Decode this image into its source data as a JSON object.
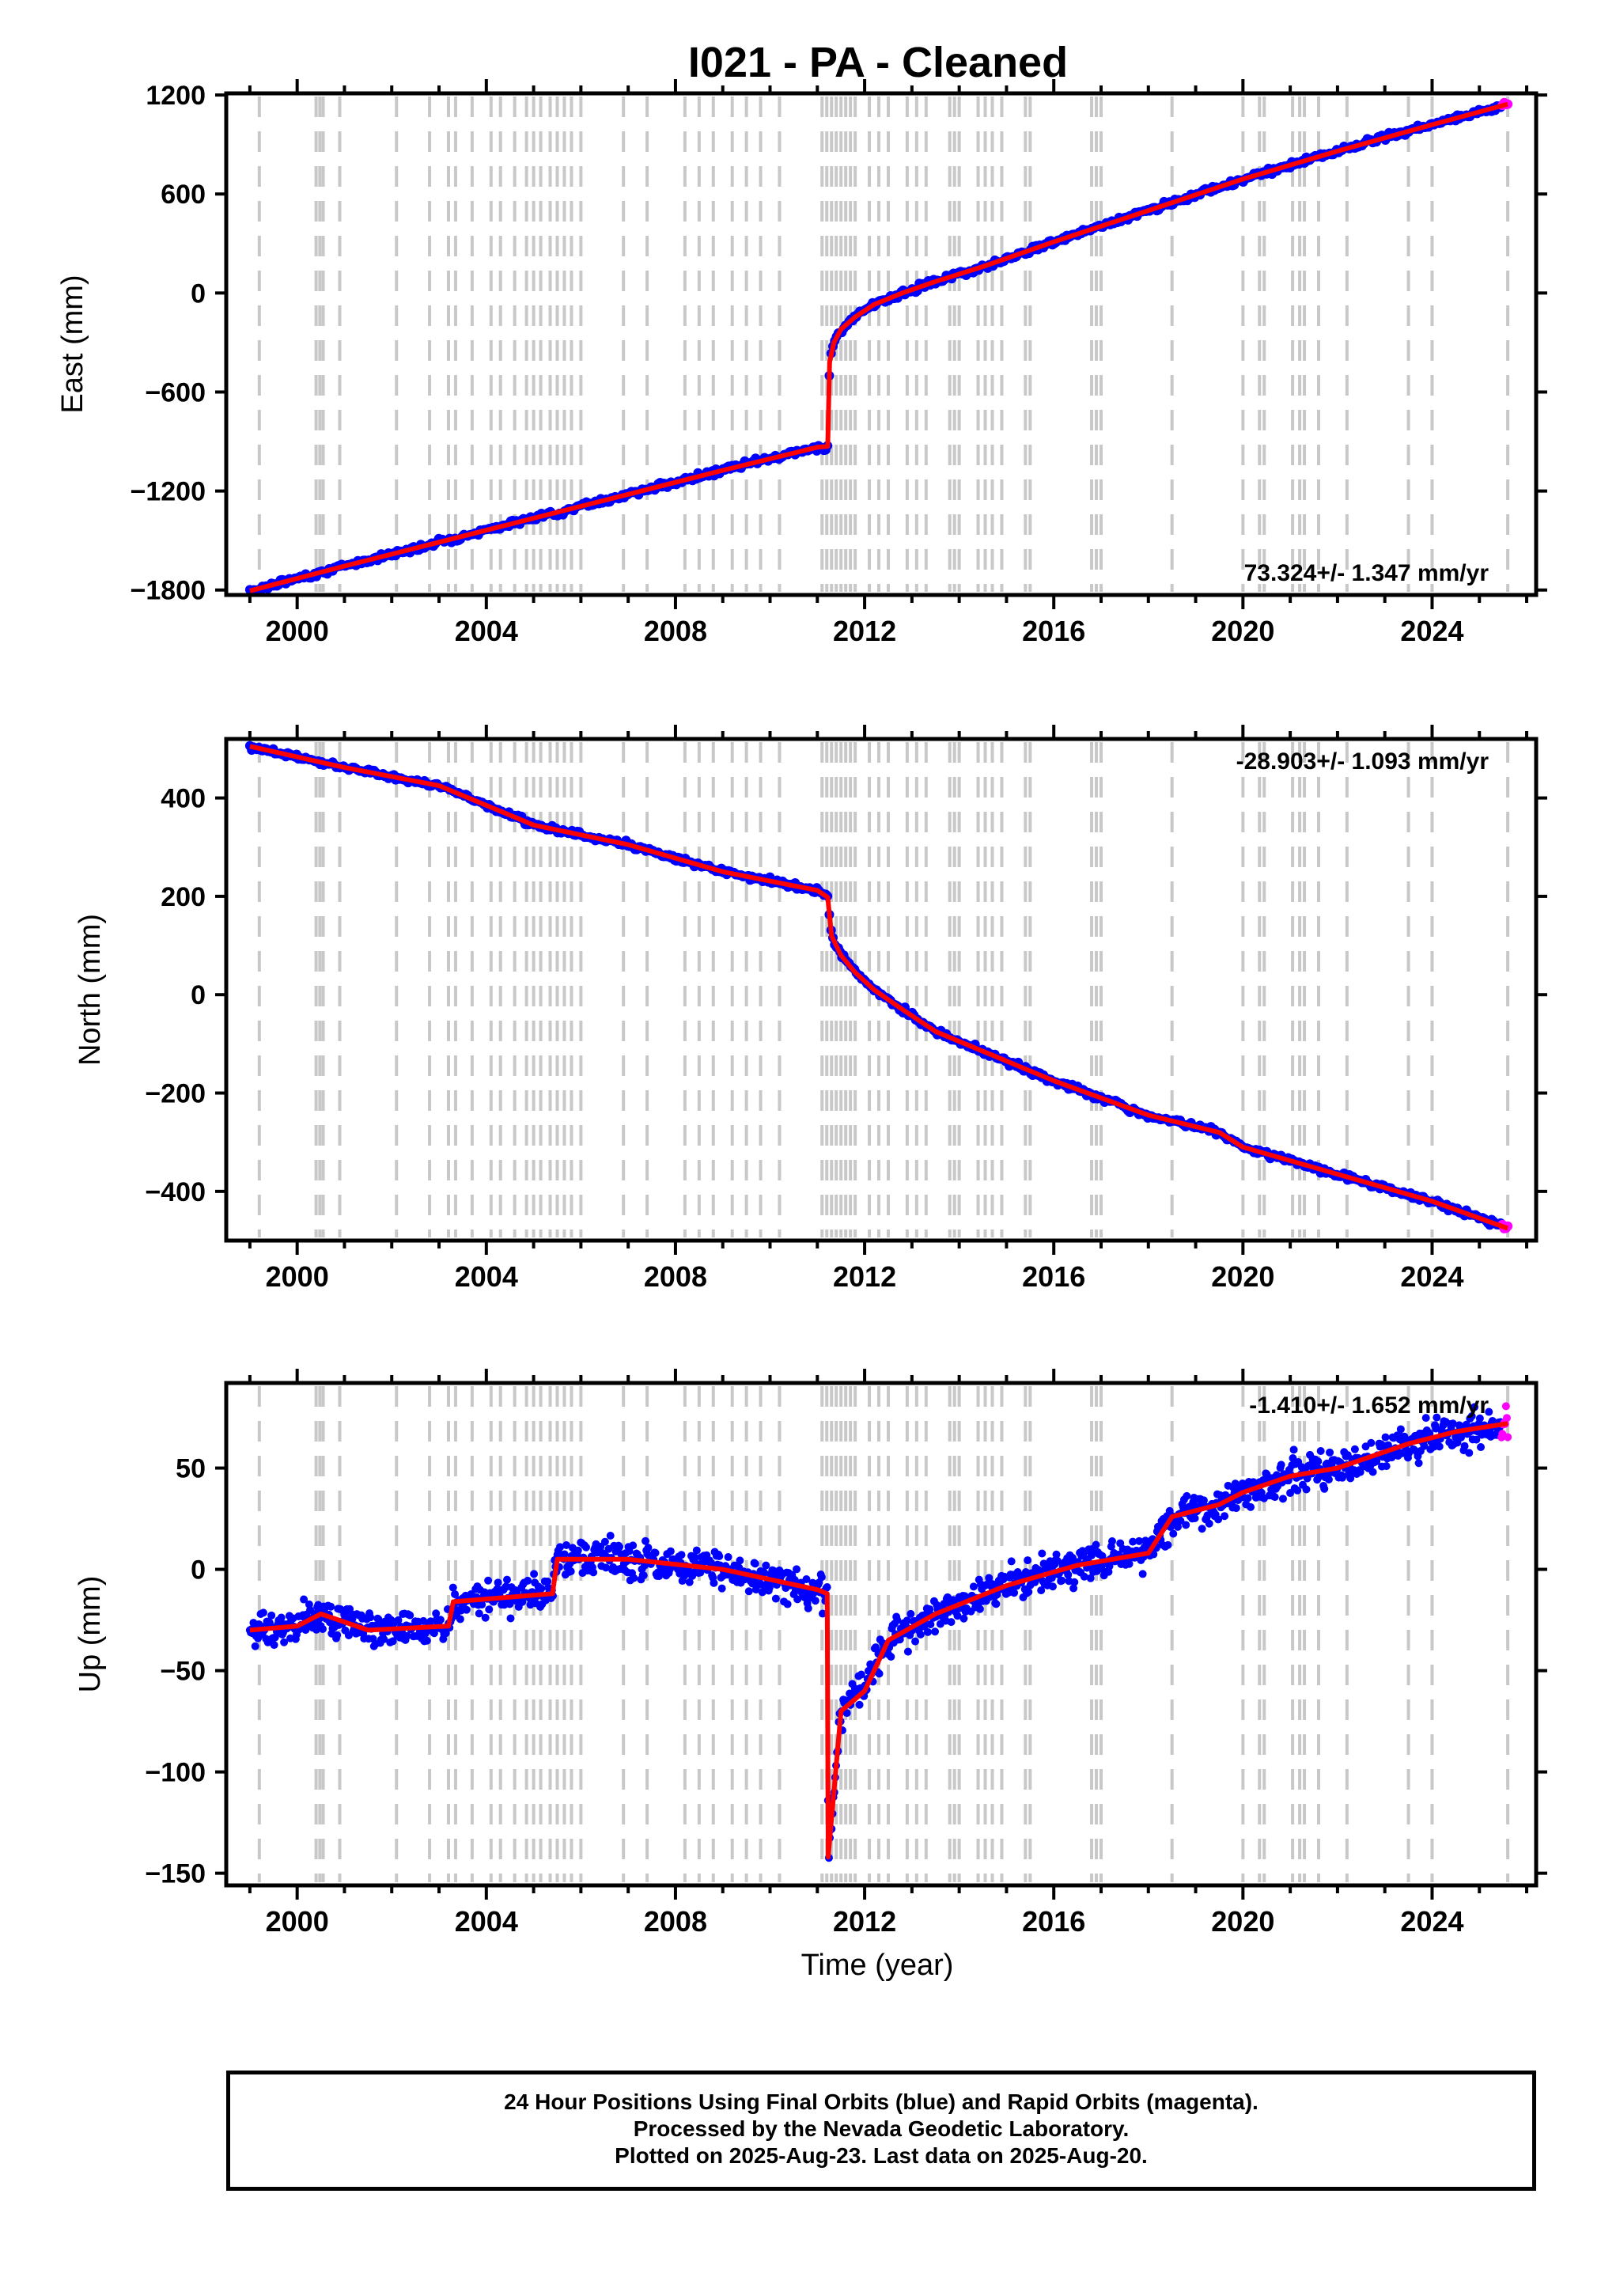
{
  "title": "I021  - PA - Cleaned",
  "xlabel": "Time (year)",
  "x_ticks": [
    "2000",
    "2004",
    "2008",
    "2012",
    "2016",
    "2020",
    "2024"
  ],
  "colors": {
    "final": "#0000ff",
    "rapid": "#ff00ff",
    "model": "#ff0000",
    "events": "#c8c8c8"
  },
  "footer": {
    "line1": "24 Hour Positions Using Final Orbits (blue) and Rapid Orbits (magenta).",
    "line2": "Processed by the Nevada Geodetic Laboratory.",
    "line3": "Plotted on 2025-Aug-23. Last data on 2025-Aug-20."
  },
  "chart_data": [
    {
      "type": "scatter",
      "ylabel": "East (mm)",
      "rate_label": "73.324+/- 1.347 mm/yr",
      "rate_position": "bottom-right",
      "xlim": [
        1998.5,
        2026.2
      ],
      "ylim": [
        -1830,
        1210
      ],
      "y_ticks": [
        1200,
        600,
        0,
        -600,
        -1200,
        -1800
      ],
      "y_tick_labels": [
        "1200",
        "600",
        "0",
        "−600",
        "−1200",
        "−1800"
      ],
      "x": [
        1999.0,
        2001.0,
        2003.0,
        2005.0,
        2007.0,
        2009.0,
        2011.0,
        2011.22,
        2011.26,
        2011.35,
        2011.5,
        2011.8,
        2012.2,
        2012.8,
        2013.5,
        2014.5,
        2016.0,
        2018.0,
        2020.0,
        2022.0,
        2024.0,
        2025.6
      ],
      "y": [
        -1805,
        -1655,
        -1510,
        -1365,
        -1220,
        -1075,
        -935,
        -930,
        -420,
        -300,
        -220,
        -145,
        -70,
        0,
        70,
        160,
        310,
        500,
        690,
        860,
        1020,
        1145
      ]
    },
    {
      "type": "scatter",
      "ylabel": "North (mm)",
      "rate_label": "-28.903+/- 1.093 mm/yr",
      "rate_position": "top-right",
      "xlim": [
        1998.5,
        2026.2
      ],
      "ylim": [
        -500,
        520
      ],
      "y_ticks": [
        400,
        200,
        0,
        -200,
        -400
      ],
      "y_tick_labels": [
        "400",
        "200",
        "0",
        "−200",
        "−400"
      ],
      "x": [
        1999.0,
        2001.0,
        2003.0,
        2005.0,
        2007.0,
        2009.0,
        2011.0,
        2011.22,
        2011.3,
        2011.5,
        2011.8,
        2012.2,
        2012.8,
        2013.5,
        2014.5,
        2016.0,
        2018.0,
        2019.5,
        2020.0,
        2022.0,
        2024.0,
        2025.6
      ],
      "y": [
        505,
        462,
        425,
        345,
        305,
        250,
        212,
        198,
        120,
        80,
        45,
        10,
        -30,
        -75,
        -115,
        -175,
        -245,
        -280,
        -310,
        -365,
        -420,
        -475
      ]
    },
    {
      "type": "scatter",
      "ylabel": "Up (mm)",
      "rate_label": "-1.410+/- 1.652 mm/yr",
      "rate_position": "top-right",
      "xlim": [
        1998.5,
        2026.2
      ],
      "ylim": [
        -156,
        92
      ],
      "y_ticks": [
        50,
        0,
        -50,
        -100,
        -150
      ],
      "y_tick_labels": [
        "50",
        "0",
        "−50",
        "−100",
        "−150"
      ],
      "x": [
        1999.0,
        2000.0,
        2000.5,
        2001.5,
        2003.2,
        2003.3,
        2005.4,
        2005.5,
        2007.0,
        2009.0,
        2011.0,
        2011.21,
        2011.23,
        2011.5,
        2012.0,
        2012.5,
        2013.5,
        2015.0,
        2016.5,
        2018.0,
        2018.5,
        2019.5,
        2020.0,
        2021.0,
        2022.0,
        2023.5,
        2024.5,
        2025.6
      ],
      "y": [
        -30,
        -28,
        -22,
        -30,
        -28,
        -16,
        -12,
        5,
        5,
        0,
        -10,
        -12,
        -142,
        -70,
        -60,
        -35,
        -22,
        -8,
        2,
        8,
        26,
        32,
        38,
        46,
        50,
        62,
        68,
        72
      ]
    }
  ]
}
